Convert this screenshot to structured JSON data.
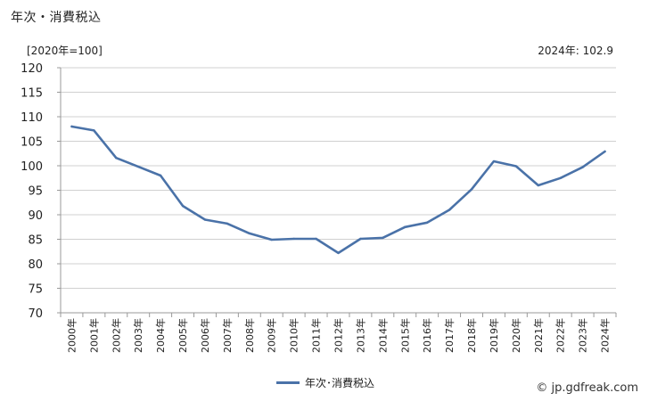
{
  "header": {
    "title": "年次・消費税込",
    "unit": "[2020年=100]",
    "latest": "2024年: 102.9"
  },
  "footer": {
    "legend_label": "年次･消費税込",
    "credit": "© jp.gdfreak.com"
  },
  "chart_data": {
    "type": "line",
    "title": "年次・消費税込",
    "ylabel": "[2020年=100]",
    "xlabel": "",
    "ylim": [
      70,
      120
    ],
    "yticks": [
      70,
      75,
      80,
      85,
      90,
      95,
      100,
      105,
      110,
      115,
      120
    ],
    "categories": [
      "2000年",
      "2001年",
      "2002年",
      "2003年",
      "2004年",
      "2005年",
      "2006年",
      "2007年",
      "2008年",
      "2009年",
      "2010年",
      "2011年",
      "2012年",
      "2013年",
      "2014年",
      "2015年",
      "2016年",
      "2017年",
      "2018年",
      "2019年",
      "2020年",
      "2021年",
      "2022年",
      "2023年",
      "2024年"
    ],
    "series": [
      {
        "name": "年次･消費税込",
        "color": "#4a72a8",
        "values": [
          108.0,
          107.2,
          101.6,
          99.8,
          98.0,
          91.8,
          89.0,
          88.2,
          86.2,
          84.9,
          85.1,
          85.1,
          82.2,
          85.1,
          85.3,
          87.5,
          88.4,
          91.0,
          95.2,
          100.9,
          99.9,
          96.0,
          97.5,
          99.7,
          102.9
        ]
      }
    ],
    "grid": "horizontal",
    "legend": "bottom-center"
  }
}
